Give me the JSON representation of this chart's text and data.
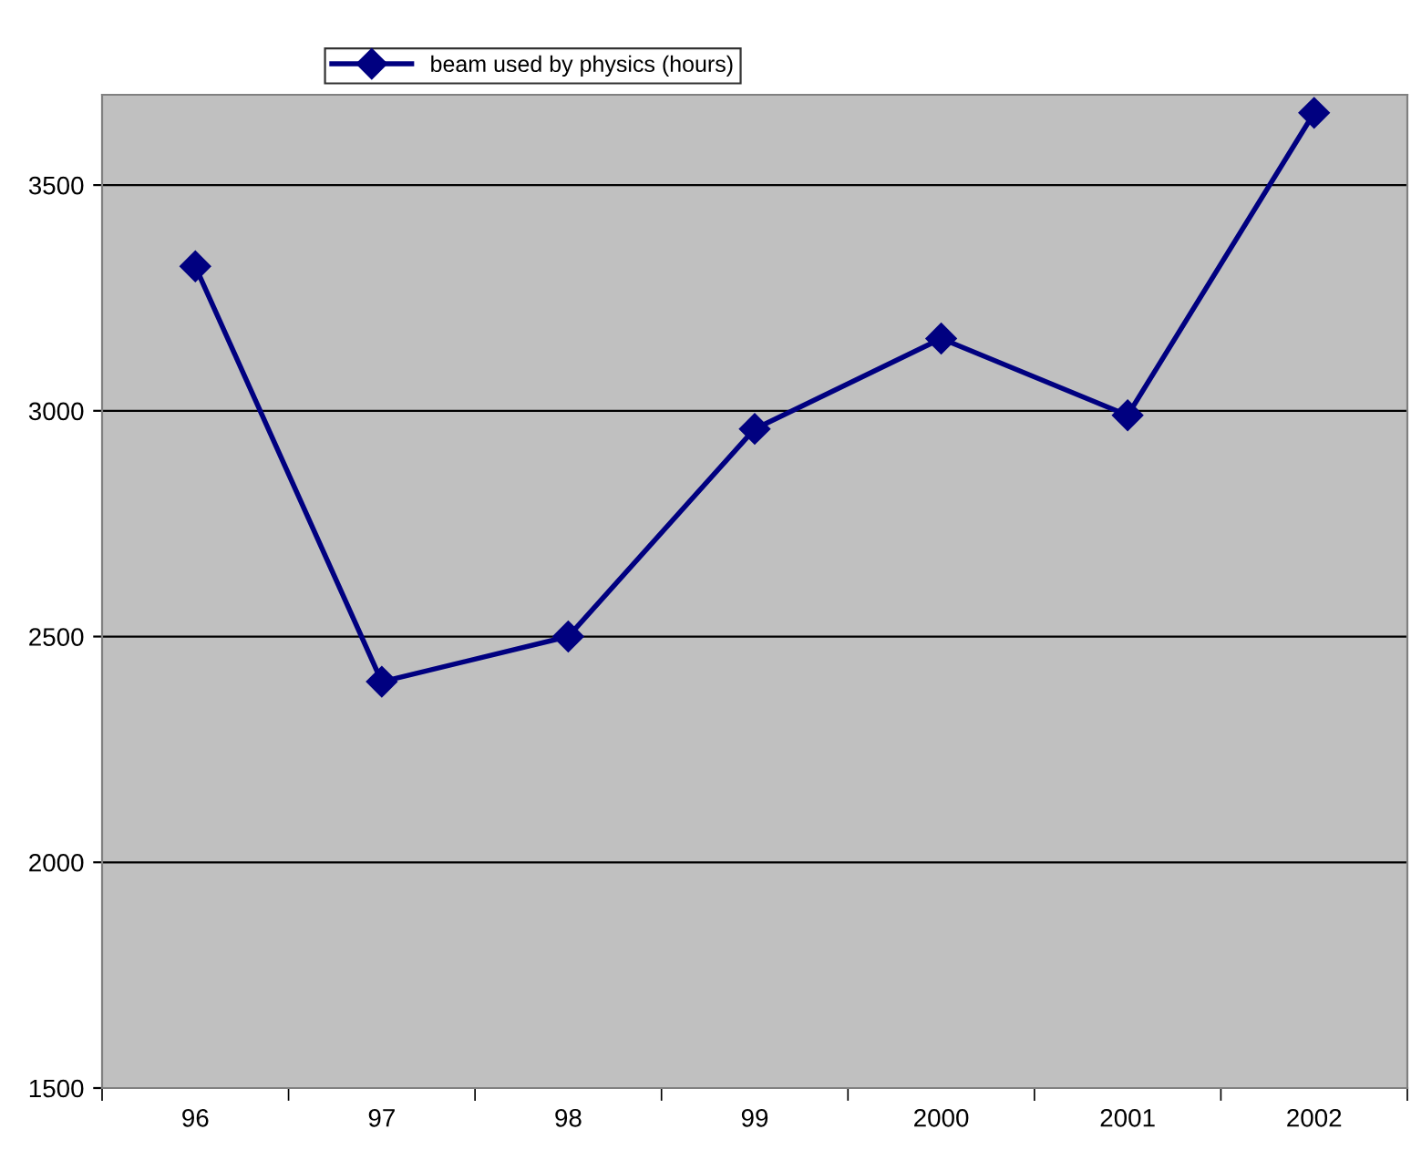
{
  "chart_data": {
    "type": "line",
    "categories": [
      "96",
      "97",
      "98",
      "99",
      "2000",
      "2001",
      "2002"
    ],
    "series": [
      {
        "name": "beam used by physics (hours)",
        "color": "#000080",
        "values": [
          3320,
          2400,
          2500,
          2960,
          3160,
          2990,
          3660
        ]
      }
    ],
    "ylim": [
      1500,
      3700
    ],
    "yticks": [
      1500,
      2000,
      2500,
      3000,
      3500
    ],
    "grid": "y",
    "legend": "top",
    "marker": "diamond",
    "line_style": "solid"
  }
}
